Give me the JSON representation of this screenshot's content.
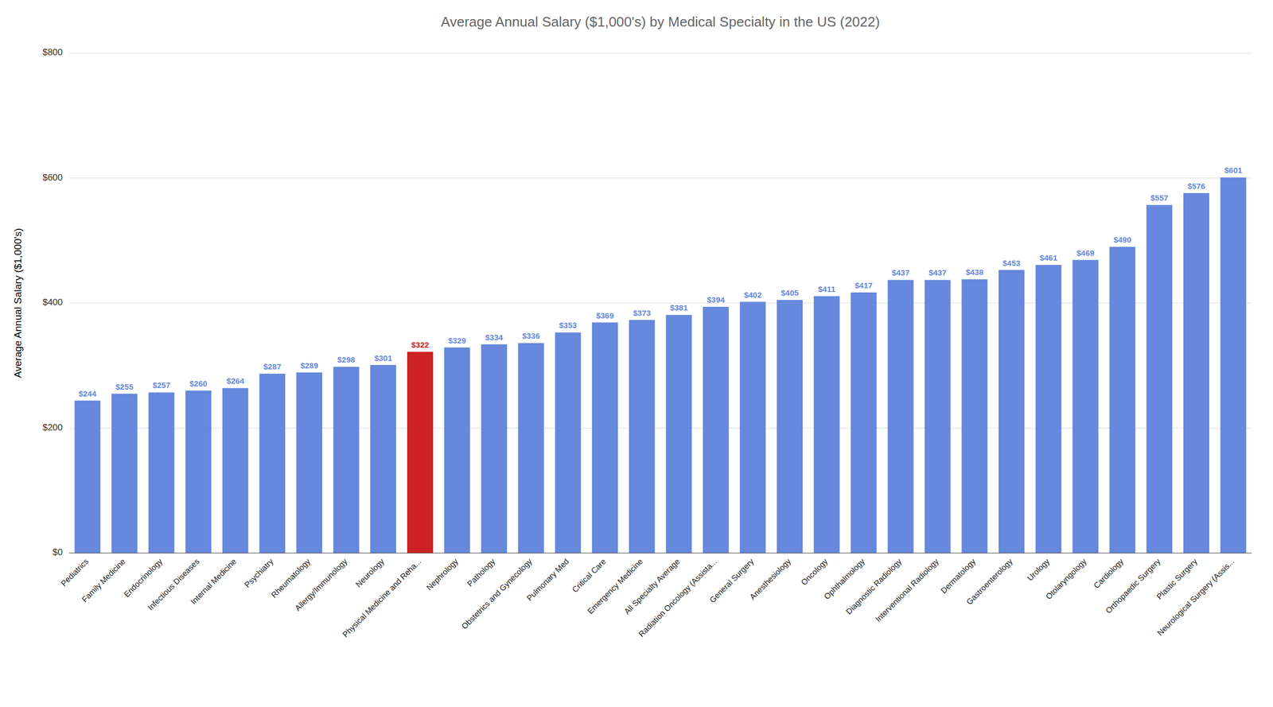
{
  "chart_data": {
    "type": "bar",
    "title": "Average Annual Salary ($1,000's) by Medical Specialty in the US (2022)",
    "ylabel": "Average Annual Salary ($1,000's)",
    "categories": [
      "Pediatrics",
      "Family Medicine",
      "Endocrinology",
      "Infectious Diseases",
      "Internal Medicine",
      "Psychiatry",
      "Rheumatology",
      "Allergy/Immunology",
      "Neurology",
      "Physical Medicine and Reha...",
      "Nephrology",
      "Pathology",
      "Obstetrics and Gynecology",
      "Pulmonary Med",
      "Critical Care",
      "Emergency Medicine",
      "All Specialty Average",
      "Radiation Oncology (Assista...",
      "General Surgery",
      "Anesthesiology",
      "Oncology",
      "Ophthalmology",
      "Diagnostic Radiology",
      "Interventional Radiology",
      "Dermatology",
      "Gastroenterology",
      "Urology",
      "Otolaryngology",
      "Cardiology",
      "Orthopaedic Surgery",
      "Plastic Surgery",
      "Neurological Surgery (Assis..."
    ],
    "values": [
      244,
      255,
      257,
      260,
      264,
      287,
      289,
      298,
      301,
      322,
      329,
      334,
      336,
      353,
      369,
      373,
      381,
      394,
      402,
      405,
      411,
      417,
      437,
      437,
      438,
      453,
      461,
      469,
      490,
      557,
      576,
      601
    ],
    "value_labels": [
      "$244",
      "$255",
      "$257",
      "$260",
      "$264",
      "$287",
      "$289",
      "$298",
      "$301",
      "$322",
      "$329",
      "$334",
      "$336",
      "$353",
      "$369",
      "$373",
      "$381",
      "$394",
      "$402",
      "$405",
      "$411",
      "$417",
      "$437",
      "$437",
      "$438",
      "$453",
      "$461",
      "$469",
      "$490",
      "$557",
      "$576",
      "$601"
    ],
    "colors": [
      "#6688DD",
      "#6688DD",
      "#6688DD",
      "#6688DD",
      "#6688DD",
      "#6688DD",
      "#6688DD",
      "#6688DD",
      "#6688DD",
      "#CC2222",
      "#6688DD",
      "#6688DD",
      "#6688DD",
      "#6688DD",
      "#6688DD",
      "#6688DD",
      "#6688DD",
      "#6688DD",
      "#6688DD",
      "#6688DD",
      "#6688DD",
      "#6688DD",
      "#6688DD",
      "#6688DD",
      "#6688DD",
      "#6688DD",
      "#6688DD",
      "#6688DD",
      "#6688DD",
      "#6688DD",
      "#6688DD",
      "#6688DD"
    ],
    "data_labels": true,
    "ylim": [
      0,
      800
    ],
    "yticks": [
      {
        "value": 0,
        "label": "$0"
      },
      {
        "value": 200,
        "label": "$200"
      },
      {
        "value": 400,
        "label": "$400"
      },
      {
        "value": 600,
        "label": "$600"
      },
      {
        "value": 800,
        "label": "$800"
      }
    ],
    "grid": true
  }
}
